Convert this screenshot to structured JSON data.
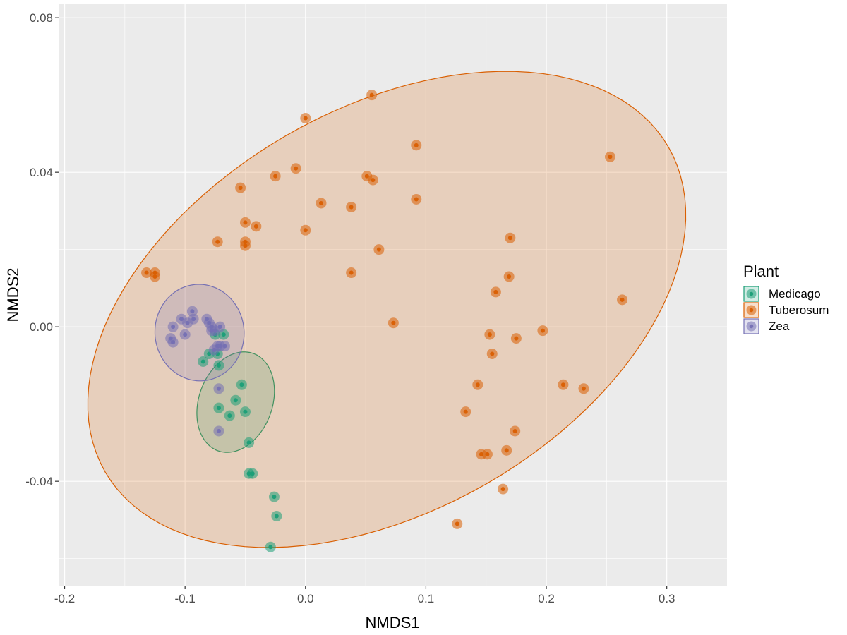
{
  "chart_data": {
    "type": "scatter",
    "title": "",
    "xlabel": "NMDS1",
    "ylabel": "NMDS2",
    "xlim": [
      -0.205,
      0.35
    ],
    "ylim": [
      -0.067,
      0.0835
    ],
    "x_ticks": [
      -0.2,
      -0.1,
      0.0,
      0.1,
      0.2,
      0.3
    ],
    "x_tick_labels": [
      "-0.2",
      "-0.1",
      "0.0",
      "0.1",
      "0.2",
      "0.3"
    ],
    "y_ticks": [
      -0.04,
      0.0,
      0.04,
      0.08
    ],
    "y_tick_labels": [
      "-0.04",
      "0.00",
      "0.04",
      "0.08"
    ],
    "grid": true,
    "panel_background": "#ebebeb",
    "legend": {
      "title": "Plant",
      "position": "right",
      "entries": [
        "Medicago",
        "Tuberosum",
        "Zea"
      ]
    },
    "series": [
      {
        "name": "Medicago",
        "color": "#1b9e77",
        "points": [
          [
            -0.075,
            -0.002
          ],
          [
            -0.068,
            -0.002
          ],
          [
            -0.08,
            -0.007
          ],
          [
            -0.073,
            -0.007
          ],
          [
            -0.085,
            -0.009
          ],
          [
            -0.072,
            -0.01
          ],
          [
            -0.053,
            -0.015
          ],
          [
            -0.072,
            -0.021
          ],
          [
            -0.058,
            -0.019
          ],
          [
            -0.063,
            -0.023
          ],
          [
            -0.05,
            -0.022
          ],
          [
            -0.047,
            -0.03
          ],
          [
            -0.047,
            -0.038
          ],
          [
            -0.044,
            -0.038
          ],
          [
            -0.026,
            -0.044
          ],
          [
            -0.024,
            -0.049
          ],
          [
            -0.029,
            -0.057
          ]
        ],
        "ellipse": {
          "cx": -0.058,
          "cy": -0.0195,
          "rx": 0.043,
          "ry": 0.0095,
          "angle_deg": -70
        }
      },
      {
        "name": "Tuberosum",
        "color": "#d95f02",
        "points": [
          [
            0.055,
            0.06
          ],
          [
            0.0,
            0.054
          ],
          [
            0.092,
            0.047
          ],
          [
            0.253,
            0.044
          ],
          [
            -0.008,
            0.041
          ],
          [
            -0.025,
            0.039
          ],
          [
            0.051,
            0.039
          ],
          [
            0.056,
            0.038
          ],
          [
            -0.054,
            0.036
          ],
          [
            0.092,
            0.033
          ],
          [
            0.013,
            0.032
          ],
          [
            0.038,
            0.031
          ],
          [
            -0.05,
            0.027
          ],
          [
            -0.041,
            0.026
          ],
          [
            0.0,
            0.025
          ],
          [
            0.17,
            0.023
          ],
          [
            -0.073,
            0.022
          ],
          [
            -0.05,
            0.022
          ],
          [
            -0.05,
            0.021
          ],
          [
            0.061,
            0.02
          ],
          [
            -0.132,
            0.014
          ],
          [
            -0.125,
            0.014
          ],
          [
            -0.125,
            0.013
          ],
          [
            0.038,
            0.014
          ],
          [
            0.169,
            0.013
          ],
          [
            0.158,
            0.009
          ],
          [
            0.263,
            0.007
          ],
          [
            0.073,
            0.001
          ],
          [
            0.197,
            -0.001
          ],
          [
            0.153,
            -0.002
          ],
          [
            0.175,
            -0.003
          ],
          [
            0.155,
            -0.007
          ],
          [
            0.143,
            -0.015
          ],
          [
            0.214,
            -0.015
          ],
          [
            0.231,
            -0.016
          ],
          [
            0.133,
            -0.022
          ],
          [
            0.174,
            -0.027
          ],
          [
            0.146,
            -0.033
          ],
          [
            0.151,
            -0.033
          ],
          [
            0.167,
            -0.032
          ],
          [
            0.164,
            -0.042
          ],
          [
            0.126,
            -0.051
          ]
        ],
        "ellipse": {
          "cx": 0.0675,
          "cy": 0.0045,
          "rx": 0.27,
          "ry": 0.052,
          "angle_deg": -30
        }
      },
      {
        "name": "Zea",
        "color": "#7570b3",
        "points": [
          [
            -0.11,
            0.0
          ],
          [
            -0.112,
            -0.003
          ],
          [
            -0.11,
            -0.004
          ],
          [
            -0.103,
            0.002
          ],
          [
            -0.1,
            -0.002
          ],
          [
            -0.098,
            0.001
          ],
          [
            -0.094,
            0.004
          ],
          [
            -0.093,
            0.002
          ],
          [
            -0.082,
            0.002
          ],
          [
            -0.08,
            0.001
          ],
          [
            -0.078,
            0.0
          ],
          [
            -0.078,
            -0.001
          ],
          [
            -0.075,
            -0.001
          ],
          [
            -0.071,
            0.0
          ],
          [
            -0.073,
            -0.005
          ],
          [
            -0.071,
            -0.005
          ],
          [
            -0.067,
            -0.005
          ],
          [
            -0.072,
            -0.016
          ],
          [
            -0.072,
            -0.027
          ],
          [
            -0.076,
            -0.006
          ]
        ],
        "ellipse": {
          "cx": -0.088,
          "cy": -0.0015,
          "rx": 0.037,
          "ry": 0.0125,
          "angle_deg": -5
        }
      }
    ]
  }
}
